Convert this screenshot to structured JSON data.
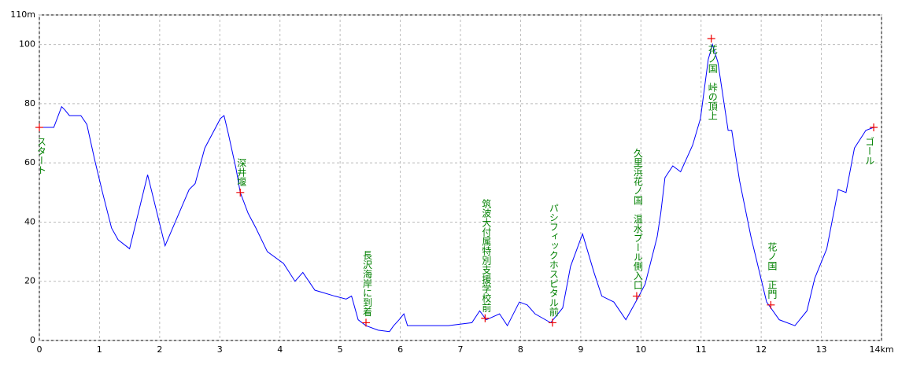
{
  "chart_data": {
    "type": "line",
    "xlim": [
      0,
      14
    ],
    "ylim": [
      0,
      110
    ],
    "xticks": [
      0,
      1,
      2,
      3,
      4,
      5,
      6,
      7,
      8,
      9,
      10,
      11,
      12,
      13,
      {
        "value": 14,
        "label": "14km"
      }
    ],
    "yticks": [
      0,
      20,
      40,
      60,
      80,
      100,
      {
        "value": 110,
        "label": "110m"
      }
    ],
    "grid": true,
    "series": [
      {
        "color": "#0000ff",
        "x": [
          0,
          0.24,
          0.37,
          0.42,
          0.5,
          0.59,
          0.69,
          0.79,
          0.92,
          1.05,
          1.2,
          1.31,
          1.5,
          1.8,
          2.09,
          2.49,
          2.59,
          2.75,
          3.01,
          3.07,
          3.14,
          3.27,
          3.34,
          3.47,
          3.6,
          3.79,
          4.06,
          4.25,
          4.38,
          4.58,
          4.91,
          5.1,
          5.19,
          5.3,
          5.43,
          5.63,
          5.82,
          5.89,
          5.98,
          6.06,
          6.12,
          6.8,
          7.19,
          7.32,
          7.43,
          7.65,
          7.78,
          7.98,
          8.11,
          8.24,
          8.5,
          8.7,
          8.83,
          9.03,
          9.22,
          9.35,
          9.55,
          9.75,
          9.94,
          10.07,
          10.27,
          10.33,
          10.4,
          10.53,
          10.66,
          10.86,
          10.99,
          11.12,
          11.19,
          11.28,
          11.45,
          11.51,
          11.64,
          11.83,
          12.09,
          12.3,
          12.56,
          12.76,
          12.89,
          13.09,
          13.28,
          13.41,
          13.55,
          13.74,
          13.87
        ],
        "values": [
          72,
          72,
          79,
          78,
          76,
          76,
          76,
          73,
          61,
          50,
          38,
          34,
          31,
          56,
          32,
          51,
          53,
          65,
          75,
          76,
          70,
          58,
          50,
          43,
          38,
          30,
          26,
          20,
          23,
          17,
          15,
          14,
          15,
          7,
          5,
          3.5,
          3,
          5,
          7,
          9,
          5,
          5,
          6,
          10,
          7,
          9,
          5,
          13,
          12,
          9,
          6,
          11,
          25,
          36,
          23,
          15,
          13,
          7,
          14,
          19,
          35,
          43,
          55,
          59,
          57,
          66,
          75,
          95,
          100,
          94,
          71,
          71,
          54,
          35,
          13,
          7,
          5,
          10,
          21,
          31,
          51,
          50,
          65,
          71,
          72
        ]
      }
    ],
    "waypoints": [
      {
        "name": "スタート",
        "x": 0,
        "y": 72
      },
      {
        "name": "深井堰",
        "x": 3.34,
        "y": 50
      },
      {
        "name": "長沢海岸に到着",
        "x": 5.43,
        "y": 6
      },
      {
        "name": "筑波大付属特別支援学校前",
        "x": 7.41,
        "y": 7.5
      },
      {
        "name": "パシフィックホスピタル前",
        "x": 8.53,
        "y": 6
      },
      {
        "name": "久里浜花ノ国　温水プール側入口",
        "x": 9.93,
        "y": 15
      },
      {
        "name": "花ノ国　峠の頂上",
        "x": 11.17,
        "y": 102
      },
      {
        "name": "花ノ国　正門",
        "x": 12.16,
        "y": 12
      },
      {
        "name": "ゴール",
        "x": 13.87,
        "y": 72
      }
    ]
  }
}
